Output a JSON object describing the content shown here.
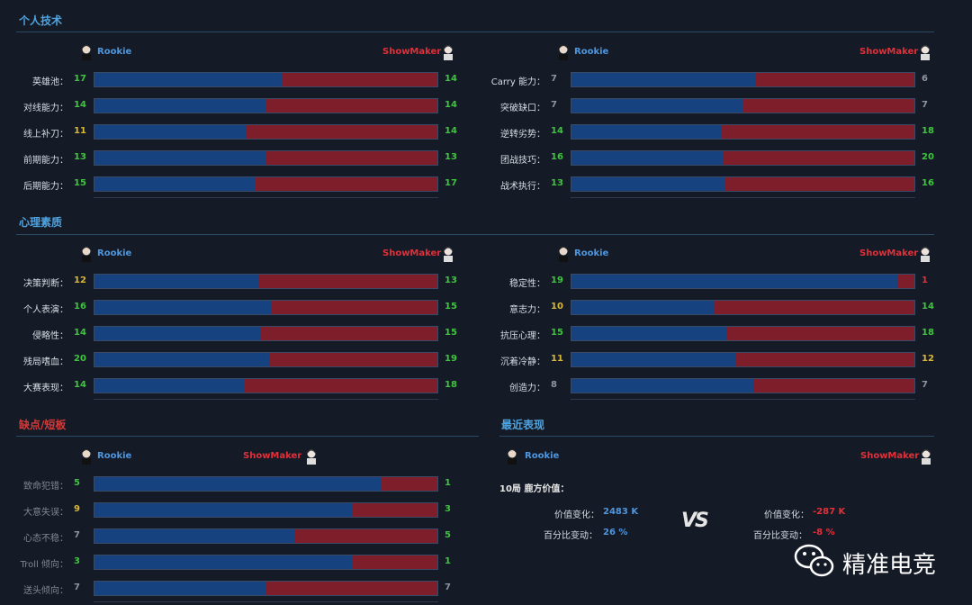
{
  "sections": {
    "personal": "个人技术",
    "mental": "心理素质",
    "flaws": "缺点/短板",
    "recent": "最近表现"
  },
  "players": {
    "left": "Rookie",
    "right": "ShowMaker"
  },
  "colors": {
    "blue_bar": "#16427f",
    "red_bar": "#7e1e2a",
    "blue_name": "#4d96e0",
    "red_name": "#e0303a",
    "green": "#3fc43f",
    "yellow": "#d9b739",
    "gray": "#8d96a0"
  },
  "panels": {
    "personal_left": [
      {
        "label": "英雄池：",
        "left": 17,
        "right": 14,
        "lc": "green",
        "rc": "green"
      },
      {
        "label": "对线能力：",
        "left": 14,
        "right": 14,
        "lc": "green",
        "rc": "green"
      },
      {
        "label": "线上补刀：",
        "left": 11,
        "right": 14,
        "lc": "yellow",
        "rc": "green"
      },
      {
        "label": "前期能力：",
        "left": 13,
        "right": 13,
        "lc": "green",
        "rc": "green"
      },
      {
        "label": "后期能力：",
        "left": 15,
        "right": 17,
        "lc": "green",
        "rc": "green"
      }
    ],
    "personal_right": [
      {
        "label": "Carry 能力：",
        "left": 7,
        "right": 6,
        "lc": "gray",
        "rc": "gray"
      },
      {
        "label": "突破缺口：",
        "left": 7,
        "right": 7,
        "lc": "gray",
        "rc": "gray"
      },
      {
        "label": "逆转劣势：",
        "left": 14,
        "right": 18,
        "lc": "green",
        "rc": "green"
      },
      {
        "label": "团战技巧：",
        "left": 16,
        "right": 20,
        "lc": "green",
        "rc": "green"
      },
      {
        "label": "战术执行：",
        "left": 13,
        "right": 16,
        "lc": "green",
        "rc": "green"
      }
    ],
    "mental_left": [
      {
        "label": "决策判断：",
        "left": 12,
        "right": 13,
        "lc": "yellow",
        "rc": "green"
      },
      {
        "label": "个人表演：",
        "left": 16,
        "right": 15,
        "lc": "green",
        "rc": "green"
      },
      {
        "label": "侵略性：",
        "left": 14,
        "right": 15,
        "lc": "green",
        "rc": "green"
      },
      {
        "label": "残局嗜血：",
        "left": 20,
        "right": 19,
        "lc": "green",
        "rc": "green"
      },
      {
        "label": "大赛表现：",
        "left": 14,
        "right": 18,
        "lc": "green",
        "rc": "green"
      }
    ],
    "mental_right": [
      {
        "label": "稳定性：",
        "left": 19,
        "right": 1,
        "lc": "green",
        "rc": "red"
      },
      {
        "label": "意志力：",
        "left": 10,
        "right": 14,
        "lc": "yellow",
        "rc": "green"
      },
      {
        "label": "抗压心理：",
        "left": 15,
        "right": 18,
        "lc": "green",
        "rc": "green"
      },
      {
        "label": "沉着冷静：",
        "left": 11,
        "right": 12,
        "lc": "yellow",
        "rc": "yellow"
      },
      {
        "label": "创造力：",
        "left": 8,
        "right": 7,
        "lc": "gray",
        "rc": "gray"
      }
    ],
    "flaws_left": [
      {
        "label": "致命犯错：",
        "left": 5,
        "right": 1,
        "lc": "green",
        "rc": "green"
      },
      {
        "label": "大意失误：",
        "left": 9,
        "right": 3,
        "lc": "yellow",
        "rc": "green"
      },
      {
        "label": "心态不稳：",
        "left": 7,
        "right": 5,
        "lc": "gray",
        "rc": "green"
      },
      {
        "label": "Troll 倾向：",
        "left": 3,
        "right": 1,
        "lc": "green",
        "rc": "green"
      },
      {
        "label": "送头倾向：",
        "left": 7,
        "right": 7,
        "lc": "gray",
        "rc": "gray"
      }
    ]
  },
  "recent": {
    "games_label": "10局 鹿方价值：",
    "left_change_label": "价值变化：",
    "left_change_value": "2483 K",
    "left_pct_label": "百分比变动：",
    "left_pct_value": "26 %",
    "vs": "VS",
    "right_change_label": "价值变化：",
    "right_change_value": "-287 K",
    "right_pct_label": "百分比变动：",
    "right_pct_value": "-8 %"
  },
  "watermark": {
    "text": "精准电竞",
    "icon": "wechat-icon"
  }
}
